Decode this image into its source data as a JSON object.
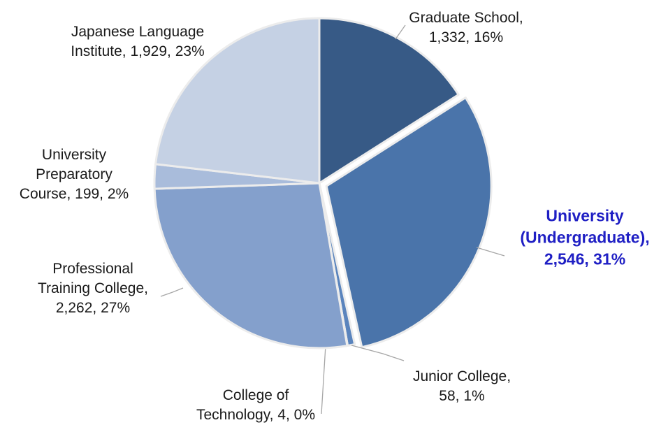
{
  "chart_data": {
    "type": "pie",
    "labels": [
      "Graduate School, 1,332, 16%",
      "University (Undergraduate), 2,546, 31%",
      "Junior College, 58, 1%",
      "College of Technology, 4, 0%",
      "Professional Training College, 2,262, 27%",
      "University Preparatory Course, 199, 2%",
      "Japanese Language Institute, 1,929, 23%"
    ],
    "values": [
      1332,
      2546,
      58,
      4,
      2262,
      199,
      1929
    ],
    "percents": [
      16,
      31,
      1,
      0,
      27,
      2,
      23
    ],
    "colors": [
      "#375a86",
      "#4a74aa",
      "#5a84bd",
      "#6e91c4",
      "#84a0cc",
      "#a9bcdb",
      "#c5d1e4"
    ],
    "label_colors": [
      "#1a1a1a",
      "#1f1fc4",
      "#1a1a1a",
      "#1a1a1a",
      "#1a1a1a",
      "#1a1a1a",
      "#1a1a1a"
    ],
    "start_angle": 0,
    "direction": "clockwise"
  }
}
